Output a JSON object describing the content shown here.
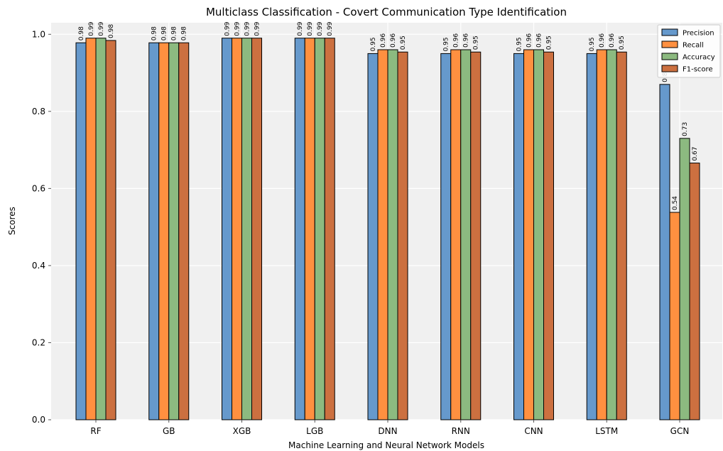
{
  "chart_data": {
    "type": "bar",
    "title": "Multiclass Classification - Covert Communication Type Identification",
    "xlabel": "Machine Learning and Neural Network Models",
    "ylabel": "Scores",
    "ylim": [
      0,
      1.03
    ],
    "yticks": [
      0.0,
      0.2,
      0.4,
      0.6,
      0.8,
      1.0
    ],
    "ytick_labels": [
      "0.0",
      "0.2",
      "0.4",
      "0.6",
      "0.8",
      "1.0"
    ],
    "grid": true,
    "legend_position": "top-right",
    "categories": [
      "RF",
      "GB",
      "XGB",
      "LGB",
      "DNN",
      "RNN",
      "CNN",
      "LSTM",
      "GCN"
    ],
    "series": [
      {
        "name": "Precision",
        "color": "#6699cc",
        "values": [
          0.978,
          0.978,
          0.99,
          0.99,
          0.95,
          0.95,
          0.95,
          0.95,
          0.87
        ],
        "labels": [
          "0.98",
          "0.98",
          "0.99",
          "0.99",
          "0.95",
          "0.95",
          "0.95",
          "0.95",
          "0.87"
        ]
      },
      {
        "name": "Recall",
        "color": "#ff9040",
        "values": [
          0.99,
          0.978,
          0.99,
          0.99,
          0.96,
          0.96,
          0.96,
          0.96,
          0.538
        ],
        "labels": [
          "0.99",
          "0.98",
          "0.99",
          "0.99",
          "0.96",
          "0.96",
          "0.96",
          "0.96",
          "0.54"
        ]
      },
      {
        "name": "Accuracy",
        "color": "#8cba80",
        "values": [
          0.99,
          0.978,
          0.99,
          0.99,
          0.96,
          0.96,
          0.96,
          0.96,
          0.73
        ],
        "labels": [
          "0.99",
          "0.98",
          "0.99",
          "0.99",
          "0.96",
          "0.96",
          "0.96",
          "0.96",
          "0.73"
        ]
      },
      {
        "name": "F1-score",
        "color": "#cc7040",
        "values": [
          0.984,
          0.978,
          0.99,
          0.99,
          0.954,
          0.954,
          0.954,
          0.954,
          0.666
        ],
        "labels": [
          "0.98",
          "0.98",
          "0.99",
          "0.99",
          "0.95",
          "0.95",
          "0.95",
          "0.95",
          "0.67"
        ]
      }
    ]
  }
}
